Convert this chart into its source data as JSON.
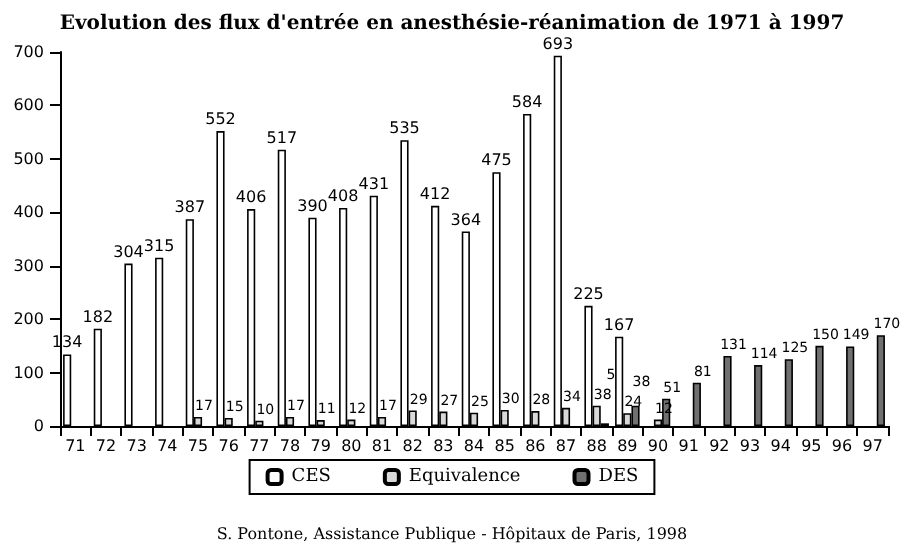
{
  "chart_data": {
    "type": "bar",
    "title": "Evolution des flux d'entrée en anesthésie-réanimation de 1971 à 1997",
    "categories": [
      "71",
      "72",
      "73",
      "74",
      "75",
      "76",
      "77",
      "78",
      "79",
      "80",
      "81",
      "82",
      "83",
      "84",
      "85",
      "86",
      "87",
      "88",
      "89",
      "90",
      "91",
      "92",
      "93",
      "94",
      "95",
      "96",
      "97"
    ],
    "series": [
      {
        "name": "CES",
        "color": "#ffffff",
        "values": [
          134,
          182,
          304,
          315,
          387,
          552,
          406,
          517,
          390,
          408,
          431,
          535,
          412,
          364,
          475,
          584,
          693,
          225,
          167,
          null,
          null,
          null,
          null,
          null,
          null,
          null,
          null
        ]
      },
      {
        "name": "Equivalence",
        "color": "#d9d9d9",
        "values": [
          null,
          null,
          null,
          null,
          17,
          15,
          10,
          17,
          11,
          12,
          17,
          29,
          27,
          25,
          30,
          28,
          34,
          38,
          24,
          12,
          null,
          null,
          null,
          null,
          null,
          null,
          null
        ]
      },
      {
        "name": "DES",
        "color": "#707070",
        "values": [
          null,
          null,
          null,
          null,
          null,
          null,
          null,
          null,
          null,
          null,
          null,
          null,
          null,
          null,
          null,
          null,
          null,
          5,
          38,
          51,
          81,
          131,
          114,
          125,
          150,
          149,
          170
        ]
      }
    ],
    "ylim": [
      0,
      700
    ],
    "yticks": [
      0,
      100,
      200,
      300,
      400,
      500,
      600,
      700
    ],
    "grid": false,
    "legend": "bottom",
    "data_labels": true,
    "annotations": [
      "S. Pontone, Assistance Publique - Hôpitaux de Paris, 1998"
    ]
  }
}
